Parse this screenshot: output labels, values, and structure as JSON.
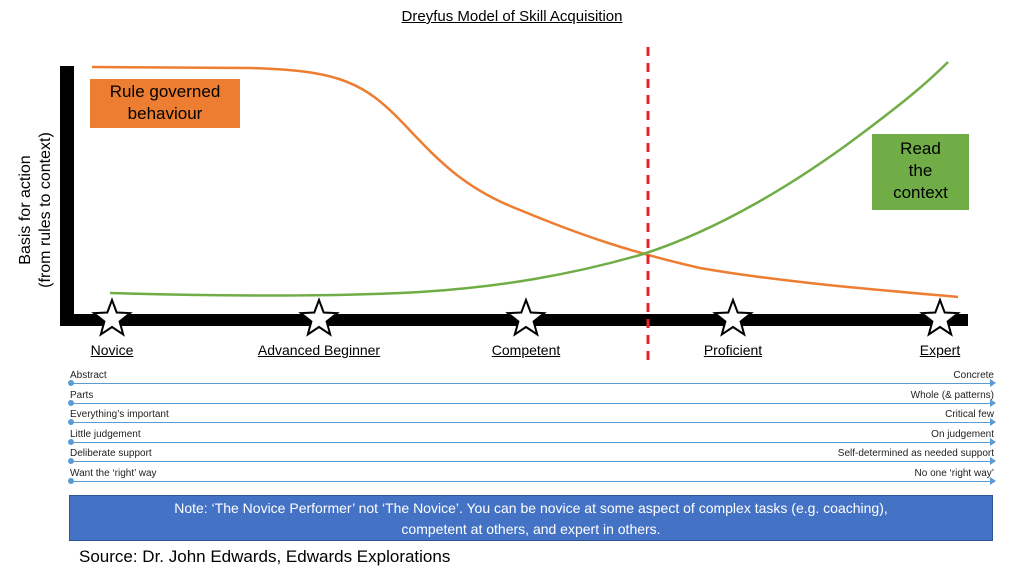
{
  "title": "Dreyfus Model of Skill Acquisition",
  "y_axis": {
    "line1": "Basis for action",
    "line2": "(from rules to context)"
  },
  "boxes": {
    "rule": {
      "line1": "Rule governed",
      "line2": "behaviour",
      "color": "#ed7d31"
    },
    "context": {
      "line1": "Read",
      "line2": "the",
      "line3": "context",
      "color": "#70ad47"
    }
  },
  "stages": [
    {
      "label": "Novice"
    },
    {
      "label": "Advanced Beginner"
    },
    {
      "label": "Competent"
    },
    {
      "label": "Proficient"
    },
    {
      "label": "Expert"
    }
  ],
  "continua": [
    {
      "left": "Abstract",
      "right": "Concrete"
    },
    {
      "left": "Parts",
      "right": "Whole (& patterns)"
    },
    {
      "left": "Everything’s important",
      "right": "Critical few"
    },
    {
      "left": "Little judgement",
      "right": "On judgement"
    },
    {
      "left": "Deliberate support",
      "right": "Self-determined as needed support"
    },
    {
      "left": "Want the ‘right’ way",
      "right": "No one ‘right way’"
    }
  ],
  "note": {
    "line1": "Note: ‘The Novice Performer’  not ‘The Novice’. You can be novice at some aspect of complex tasks (e.g. coaching),",
    "line2": "competent at others, and expert in others."
  },
  "source": "Source: Dr. John Edwards, Edwards Explorations",
  "colors": {
    "rule_curve": "#ed7d31",
    "context_curve": "#70ad47",
    "threshold_line": "#e8232a",
    "continuum_line": "#5b9bd5",
    "note_bg": "#4472c4"
  }
}
